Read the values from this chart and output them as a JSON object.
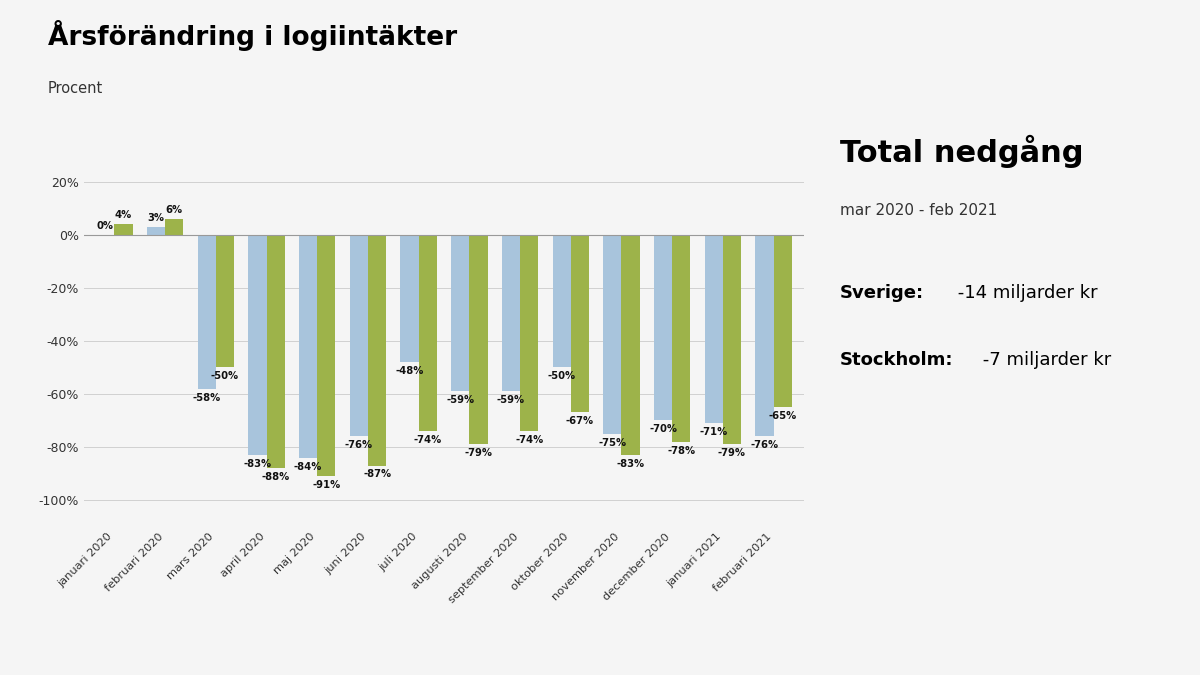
{
  "title": "Årsförändring i logiintäkter",
  "subtitle": "Procent",
  "categories": [
    "januari 2020",
    "februari 2020",
    "mars 2020",
    "april 2020",
    "maj 2020",
    "juni 2020",
    "juli 2020",
    "augusti 2020",
    "september 2020",
    "oktober 2020",
    "november 2020",
    "december 2020",
    "januari 2021",
    "februari 2021"
  ],
  "stockholm": [
    0,
    3,
    -58,
    -83,
    -84,
    -76,
    -48,
    -59,
    -59,
    -50,
    -75,
    -70,
    -71,
    -76
  ],
  "sverige": [
    4,
    6,
    -50,
    -88,
    -91,
    -87,
    -74,
    -79,
    -74,
    -67,
    -83,
    -78,
    -79,
    -65
  ],
  "color_stockholm": "#a8c4dc",
  "color_sverige": "#9db34a",
  "background_color": "#f5f5f5",
  "ylim": [
    -110,
    30
  ],
  "yticks": [
    20,
    0,
    -20,
    -40,
    -60,
    -80,
    -100
  ],
  "annotation_color": "#111111",
  "side_title": "Total nedgång",
  "side_subtitle": "mar 2020 - feb 2021",
  "side_sverige_label": "Sverige:",
  "side_sverige_val": " -14 miljarder kr",
  "side_stockholm_label": "Stockholm:",
  "side_stockholm_val": " -7 miljarder kr"
}
